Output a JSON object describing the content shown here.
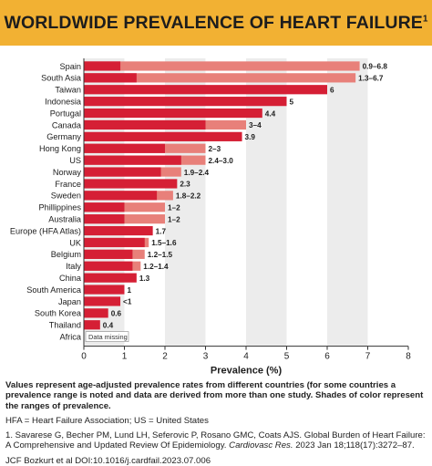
{
  "header": {
    "title": "WORLDWIDE PREVALENCE OF HEART FAILURE",
    "title_sup": "1"
  },
  "colors": {
    "banner": "#f2b133",
    "bar_low": "#d51f35",
    "bar_high": "#e8807a",
    "plot_band_light": "#ececec",
    "plot_band_white": "#ffffff"
  },
  "chart_data": {
    "type": "bar",
    "orientation": "horizontal",
    "xlabel": "Prevalence (%)",
    "xlim": [
      0,
      8
    ],
    "xticks": [
      0,
      1,
      2,
      3,
      4,
      5,
      6,
      7,
      8
    ],
    "grid": "alternating vertical bands",
    "categories": [
      "Spain",
      "South Asia",
      "Taiwan",
      "Indonesia",
      "Portugal",
      "Canada",
      "Germany",
      "Hong Kong",
      "US",
      "Norway",
      "France",
      "Sweden",
      "Phillippines",
      "Australia",
      "Europe (HFA Atlas)",
      "UK",
      "Belgium",
      "Italy",
      "China",
      "South America",
      "Japan",
      "South Korea",
      "Thailand",
      "Africa"
    ],
    "series": [
      {
        "values": [
          0.9,
          1.3,
          6,
          5,
          4.4,
          3,
          3.9,
          2,
          2.4,
          1.9,
          2.3,
          1.8,
          1,
          1,
          1.7,
          1.5,
          1.2,
          1.2,
          1.3,
          1,
          0.9,
          0.6,
          0.4,
          null
        ]
      },
      {
        "values": [
          6.8,
          6.7,
          6,
          5,
          4.4,
          4,
          3.9,
          3,
          3.0,
          2.4,
          2.3,
          2.2,
          2,
          2,
          1.7,
          1.6,
          1.5,
          1.4,
          1.3,
          1,
          0.9,
          0.6,
          0.4,
          null
        ]
      }
    ],
    "data_labels": [
      "0.9–6.8",
      "1.3–6.7",
      "6",
      "5",
      "4.4",
      "3–4",
      "3.9",
      "2–3",
      "2.4–3.0",
      "1.9–2.4",
      "2.3",
      "1.8–2.2",
      "1–2",
      "1–2",
      "1.7",
      "1.5–1.6",
      "1.2–1.5",
      "1.2–1.4",
      "1.3",
      "1",
      "<1",
      "0.6",
      "0.4",
      ""
    ],
    "annotations": [
      {
        "category": "Africa",
        "text": "Data missing"
      }
    ]
  },
  "notes": {
    "description": "Values represent age-adjusted prevalence rates from different countries (for some countries a prevalence range is noted and data are derived from more than one study. Shades of color represent the ranges of prevalence.",
    "abbreviations": "HFA = Heart Failure Association; US = United States",
    "reference_prefix": "1. Savarese G, Becher PM, Lund LH, Seferovic P, Rosano GMC, Coats AJS. Global Burden of Heart Failure: A Comprehensive and Updated Review Of Epidemiology. ",
    "reference_journal": "Cardiovasc Res.",
    "reference_suffix": " 2023 Jan 18;118(17):3272–87.",
    "doi_line": "JCF Bozkurt et al DOI:10.1016/j.cardfail.2023.07.006"
  }
}
